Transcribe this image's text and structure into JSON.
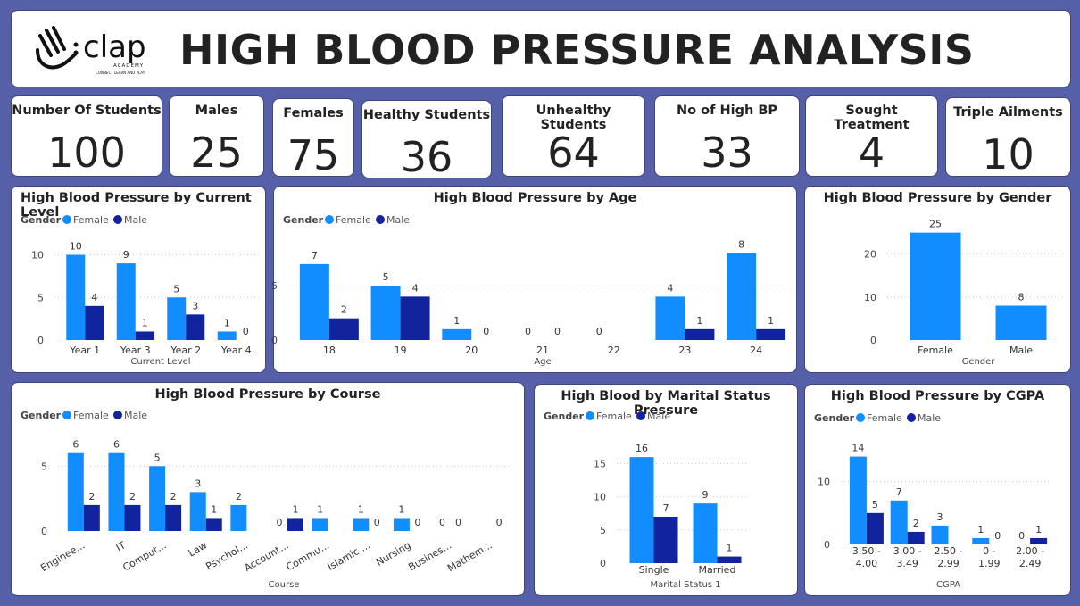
{
  "header": {
    "logo_text": "clap",
    "logo_sub": "ACADEMY",
    "logo_tagline": "CONNECT LEARN AND PLAY",
    "title": "HIGH BLOOD PRESSURE ANALYSIS"
  },
  "colors": {
    "female": "#118dff",
    "male": "#12239e",
    "background": "#5560a8"
  },
  "kpis": [
    {
      "label": "Number Of Students",
      "value": "100"
    },
    {
      "label": "Males",
      "value": "25"
    },
    {
      "label": "Females",
      "value": "75"
    },
    {
      "label": "Healthy Students",
      "value": "36"
    },
    {
      "label": "Unhealthy Students",
      "value": "64"
    },
    {
      "label": "No of High BP",
      "value": "33"
    },
    {
      "label": "Sought Treatment",
      "value": "4"
    },
    {
      "label": "Triple Ailments",
      "value": "10"
    }
  ],
  "legend": {
    "title": "Gender",
    "female": "Female",
    "male": "Male"
  },
  "chart_data": [
    {
      "id": "level",
      "type": "bar",
      "title": "High Blood Pressure by Current Level",
      "xlabel": "Current Level",
      "ylabel": "",
      "categories": [
        "Year 1",
        "Year 3",
        "Year 2",
        "Year 4"
      ],
      "series": [
        {
          "name": "Female",
          "values": [
            10,
            9,
            5,
            1
          ]
        },
        {
          "name": "Male",
          "values": [
            4,
            1,
            3,
            0
          ]
        }
      ],
      "yticks": [
        0,
        5,
        10
      ],
      "ylim": [
        0,
        11
      ],
      "legend": "top-left"
    },
    {
      "id": "age",
      "type": "bar",
      "title": "High Blood Pressure by Age",
      "xlabel": "Age",
      "ylabel": "",
      "categories": [
        "18",
        "19",
        "20",
        "21",
        "22",
        "23",
        "24"
      ],
      "series": [
        {
          "name": "Female",
          "values": [
            7,
            5,
            1,
            0,
            0,
            4,
            8
          ]
        },
        {
          "name": "Male",
          "values": [
            2,
            4,
            0,
            0,
            null,
            1,
            1
          ]
        }
      ],
      "yticks": [
        0,
        5
      ],
      "ylim": [
        0,
        8.8
      ],
      "legend": "top-left"
    },
    {
      "id": "gender",
      "type": "bar",
      "title": "High Blood Pressure by Gender",
      "xlabel": "Gender",
      "ylabel": "",
      "categories": [
        "Female",
        "Male"
      ],
      "series": [
        {
          "name": "",
          "values": [
            25,
            8
          ]
        }
      ],
      "yticks": [
        0,
        10,
        20
      ],
      "ylim": [
        0,
        27
      ]
    },
    {
      "id": "course",
      "type": "bar",
      "title": "High Blood Pressure by Course",
      "xlabel": "Course",
      "ylabel": "",
      "categories": [
        "Enginee...",
        "IT",
        "Comput...",
        "Law",
        "Psychol...",
        "Account...",
        "Commu...",
        "Islamic ...",
        "Nursing",
        "Busines...",
        "Mathem..."
      ],
      "series": [
        {
          "name": "Female",
          "values": [
            6,
            6,
            5,
            3,
            2,
            0,
            1,
            1,
            1,
            0,
            null
          ]
        },
        {
          "name": "Male",
          "values": [
            2,
            2,
            2,
            1,
            null,
            1,
            null,
            0,
            0,
            0,
            0
          ]
        }
      ],
      "yticks": [
        0,
        5
      ],
      "ylim": [
        0,
        6.6
      ],
      "legend": "top-left"
    },
    {
      "id": "marital",
      "type": "bar",
      "title": "High Blood by Marital Status Pressure",
      "xlabel": "Marital Status 1",
      "ylabel": "",
      "categories": [
        "Single",
        "Married"
      ],
      "series": [
        {
          "name": "Female",
          "values": [
            16,
            9
          ]
        },
        {
          "name": "Male",
          "values": [
            7,
            1
          ]
        }
      ],
      "yticks": [
        0,
        5,
        10,
        15
      ],
      "ylim": [
        0,
        17.5
      ],
      "legend": "top-left"
    },
    {
      "id": "cgpa",
      "type": "bar",
      "title": "High Blood Pressure by CGPA",
      "xlabel": "CGPA",
      "ylabel": "",
      "categories": [
        "3.50 - 4.00",
        "3.00 - 3.49",
        "2.50 - 2.99",
        "0 - 1.99",
        "2.00 - 2.49"
      ],
      "series": [
        {
          "name": "Female",
          "values": [
            14,
            7,
            3,
            1,
            0
          ]
        },
        {
          "name": "Male",
          "values": [
            5,
            2,
            null,
            0,
            1
          ]
        }
      ],
      "yticks": [
        0,
        10
      ],
      "ylim": [
        0,
        15.5
      ],
      "legend": "top-left"
    }
  ]
}
